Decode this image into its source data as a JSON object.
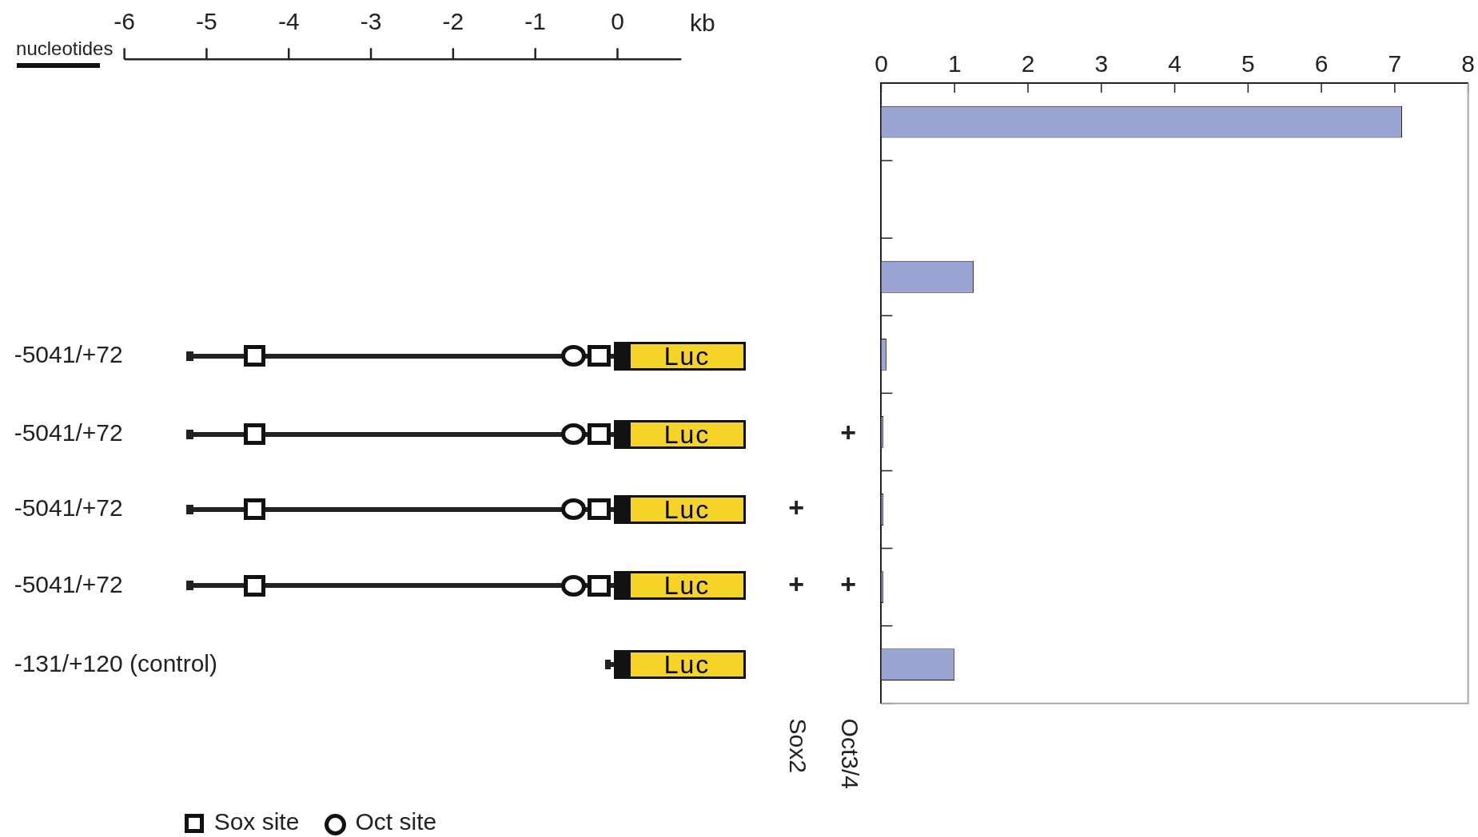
{
  "chart_data": {
    "type": "bar",
    "orientation": "horizontal",
    "categories": [
      null,
      null,
      null,
      null,
      null,
      null,
      null,
      null
    ],
    "values": [
      7.1,
      0,
      1.26,
      0.07,
      0.03,
      0.03,
      0.03,
      1.0
    ],
    "color": "#9aa5d3",
    "xlim": [
      0,
      8
    ],
    "xticks": [
      0,
      1,
      2,
      3,
      4,
      5,
      6,
      7,
      8
    ],
    "grid": false,
    "annotations": [
      "nucleotides",
      "Sox2",
      "Oct3/4",
      "Sox site",
      "Oct site",
      "Luc",
      "Luc",
      "Luc",
      "Luc",
      "Luc",
      "+",
      "+",
      "+",
      "+",
      "-6",
      "-5",
      "-4",
      "-3",
      "-2",
      "-1",
      "0",
      "kb",
      "-5041/+72",
      "-5041/+72",
      "-5041/+72",
      "-5041/+72",
      "-131/+120 (control)"
    ]
  }
}
